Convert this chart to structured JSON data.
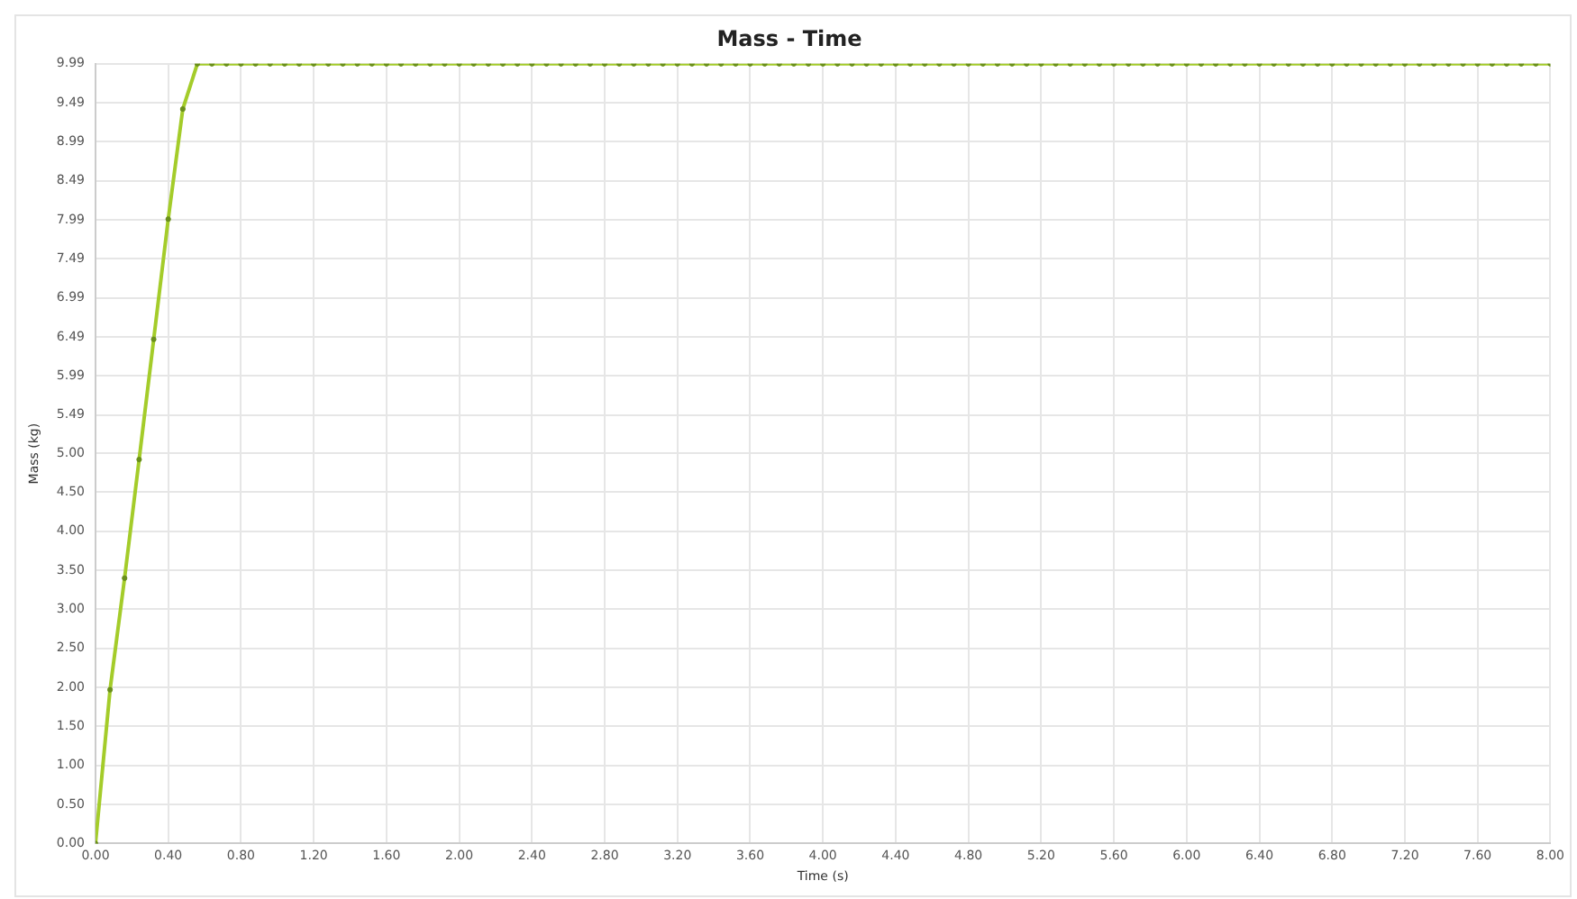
{
  "chart_data": {
    "type": "line",
    "title": "Mass - Time",
    "xlabel": "Time (s)",
    "ylabel": "Mass (kg)",
    "x": [
      0,
      0.08,
      0.16,
      0.24,
      0.32,
      0.4,
      0.48,
      0.56,
      0.64,
      0.72,
      0.8,
      0.88,
      0.96,
      1.04,
      1.12,
      1.2,
      1.28,
      1.36,
      1.44,
      1.52,
      1.6,
      1.68,
      1.76,
      1.84,
      1.92,
      2,
      2.08,
      2.16,
      2.24,
      2.32,
      2.4,
      2.48,
      2.56,
      2.64,
      2.72,
      2.8,
      2.88,
      2.96,
      3.04,
      3.12,
      3.2,
      3.28,
      3.36,
      3.44,
      3.52,
      3.6,
      3.68,
      3.76,
      3.84,
      3.92,
      4,
      4.08,
      4.16,
      4.24,
      4.32,
      4.4,
      4.48,
      4.56,
      4.64,
      4.72,
      4.8,
      4.88,
      4.96,
      5.04,
      5.12,
      5.2,
      5.28,
      5.36,
      5.44,
      5.52,
      5.6,
      5.68,
      5.76,
      5.84,
      5.92,
      6,
      6.08,
      6.16,
      6.24,
      6.32,
      6.4,
      6.48,
      6.56,
      6.64,
      6.72,
      6.8,
      6.88,
      6.96,
      7.04,
      7.12,
      7.2,
      7.28,
      7.36,
      7.44,
      7.52,
      7.6,
      7.68,
      7.76,
      7.84,
      7.92,
      8
    ],
    "series": [
      {
        "color": "#a4cc2a",
        "values": [
          0,
          1.97,
          3.4,
          4.92,
          6.46,
          8.0,
          9.41,
          9.99,
          9.99,
          9.99,
          9.99,
          9.99,
          9.99,
          9.99,
          9.99,
          9.99,
          9.99,
          9.99,
          9.99,
          9.99,
          9.99,
          9.99,
          9.99,
          9.99,
          9.99,
          9.99,
          9.99,
          9.99,
          9.99,
          9.99,
          9.99,
          9.99,
          9.99,
          9.99,
          9.99,
          9.99,
          9.99,
          9.99,
          9.99,
          9.99,
          9.99,
          9.99,
          9.99,
          9.99,
          9.99,
          9.99,
          9.99,
          9.99,
          9.99,
          9.99,
          9.99,
          9.99,
          9.99,
          9.99,
          9.99,
          9.99,
          9.99,
          9.99,
          9.99,
          9.99,
          9.99,
          9.99,
          9.99,
          9.99,
          9.99,
          9.99,
          9.99,
          9.99,
          9.99,
          9.99,
          9.99,
          9.99,
          9.99,
          9.99,
          9.99,
          9.99,
          9.99,
          9.99,
          9.99,
          9.99,
          9.99,
          9.99,
          9.99,
          9.99,
          9.99,
          9.99,
          9.99,
          9.99,
          9.99,
          9.99,
          9.99,
          9.99,
          9.99,
          9.99,
          9.99,
          9.99,
          9.99,
          9.99,
          9.99,
          9.99,
          9.99
        ]
      }
    ],
    "xlim": [
      0,
      8
    ],
    "ylim": [
      0,
      9.99
    ],
    "xticks": [
      {
        "value": 0,
        "label": "0.00"
      },
      {
        "value": 0.4,
        "label": "0.40"
      },
      {
        "value": 0.8,
        "label": "0.80"
      },
      {
        "value": 1.2,
        "label": "1.20"
      },
      {
        "value": 1.6,
        "label": "1.60"
      },
      {
        "value": 2,
        "label": "2.00"
      },
      {
        "value": 2.4,
        "label": "2.40"
      },
      {
        "value": 2.8,
        "label": "2.80"
      },
      {
        "value": 3.2,
        "label": "3.20"
      },
      {
        "value": 3.6,
        "label": "3.60"
      },
      {
        "value": 4,
        "label": "4.00"
      },
      {
        "value": 4.4,
        "label": "4.40"
      },
      {
        "value": 4.8,
        "label": "4.80"
      },
      {
        "value": 5.2,
        "label": "5.20"
      },
      {
        "value": 5.6,
        "label": "5.60"
      },
      {
        "value": 6,
        "label": "6.00"
      },
      {
        "value": 6.4,
        "label": "6.40"
      },
      {
        "value": 6.8,
        "label": "6.80"
      },
      {
        "value": 7.2,
        "label": "7.20"
      },
      {
        "value": 7.6,
        "label": "7.60"
      },
      {
        "value": 8,
        "label": "8.00"
      }
    ],
    "yticks": [
      {
        "value": 0,
        "label": "0.00"
      },
      {
        "value": 0.5,
        "label": "0.50"
      },
      {
        "value": 1,
        "label": "1.00"
      },
      {
        "value": 1.5,
        "label": "1.50"
      },
      {
        "value": 2,
        "label": "2.00"
      },
      {
        "value": 2.5,
        "label": "2.50"
      },
      {
        "value": 3,
        "label": "3.00"
      },
      {
        "value": 3.5,
        "label": "3.50"
      },
      {
        "value": 4,
        "label": "4.00"
      },
      {
        "value": 4.5,
        "label": "4.50"
      },
      {
        "value": 5,
        "label": "5.00"
      },
      {
        "value": 5.49,
        "label": "5.49"
      },
      {
        "value": 5.99,
        "label": "5.99"
      },
      {
        "value": 6.49,
        "label": "6.49"
      },
      {
        "value": 6.99,
        "label": "6.99"
      },
      {
        "value": 7.49,
        "label": "7.49"
      },
      {
        "value": 7.99,
        "label": "7.99"
      },
      {
        "value": 8.49,
        "label": "8.49"
      },
      {
        "value": 8.99,
        "label": "8.99"
      },
      {
        "value": 9.49,
        "label": "9.49"
      },
      {
        "value": 9.99,
        "label": "9.99"
      }
    ],
    "grid": true,
    "marker": "circle",
    "line_style": "solid"
  }
}
